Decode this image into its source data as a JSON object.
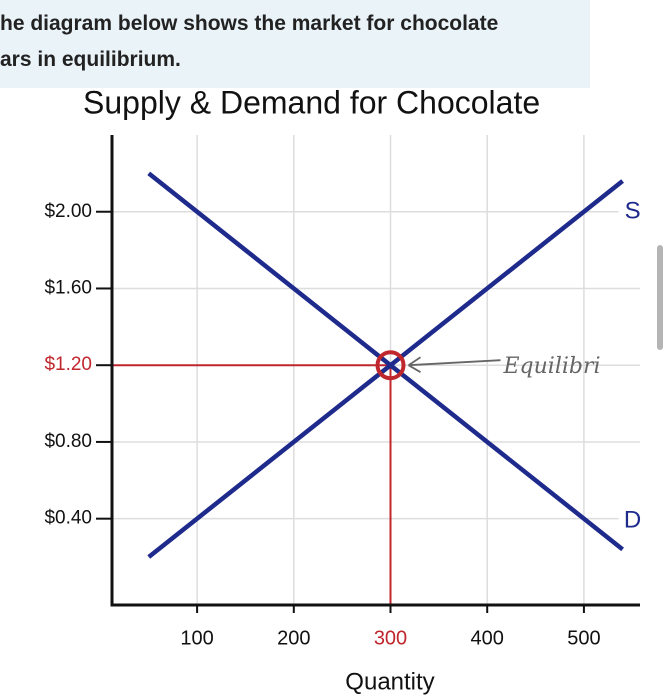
{
  "header": {
    "lines": [
      "he diagram below shows the market for chocolate",
      "ars in equilibrium."
    ]
  },
  "chart_data": {
    "type": "line",
    "title": "Supply & Demand for Chocolate",
    "x_label": "Quantity",
    "x": [
      50,
      300,
      540
    ],
    "series": [
      {
        "name": "S",
        "color": "#1e2a8c",
        "values": [
          0.2,
          1.2,
          2.16
        ]
      },
      {
        "name": "D",
        "color": "#1e2a8c",
        "values": [
          2.2,
          1.2,
          0.24
        ]
      }
    ],
    "xlim": [
      12,
      558
    ],
    "ylim": [
      -0.05,
      2.4
    ],
    "xticks": [
      100,
      200,
      300,
      400,
      500
    ],
    "yticks": [
      {
        "value": 0.4,
        "label": "$0.40"
      },
      {
        "value": 0.8,
        "label": "$0.80"
      },
      {
        "value": 1.2,
        "label": "$1.20"
      },
      {
        "value": 1.6,
        "label": "$1.60"
      },
      {
        "value": 2.0,
        "label": "$2.00"
      }
    ],
    "grid": true,
    "annotation": {
      "label": "Equilibri",
      "x": 300,
      "y": 1.2,
      "color": "#c0262d"
    }
  }
}
